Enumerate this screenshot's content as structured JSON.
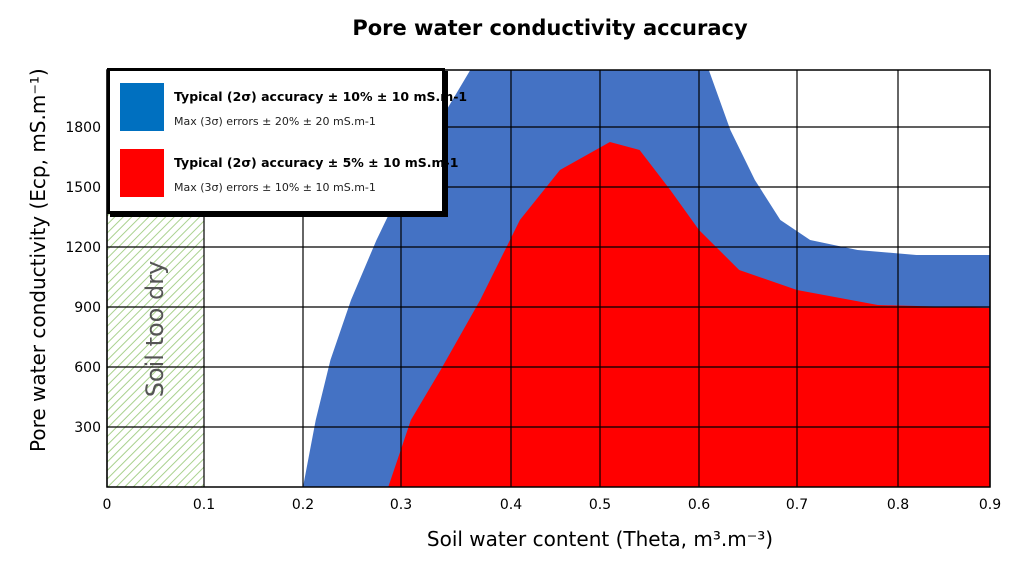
{
  "chart_data": {
    "type": "area",
    "title": "Pore water conductivity accuracy",
    "xlabel": "Soil water content (Theta, m³.m⁻³)",
    "ylabel": "Pore water conductivity (Ecp, mS.m⁻¹)",
    "xlim": [
      0,
      0.9
    ],
    "ylim": [
      0,
      2085
    ],
    "x_ticks": [
      "0",
      "0.1",
      "0.2",
      "0.3",
      "0.4",
      "0.5",
      "0.6",
      "0.7",
      "0.8",
      "0.9"
    ],
    "y_ticks": [
      "300",
      "600",
      "900",
      "1200",
      "1500",
      "1800"
    ],
    "grid": true,
    "legend_position": "top-left",
    "annotation": "Soil too dry",
    "annotation_range_x": [
      0,
      0.1
    ],
    "series": [
      {
        "name": "Typical (2σ) accuracy ± 10% ± 10 mS.m-1",
        "sub": "Max (3σ) errors ± 20% ± 20 mS.m-1",
        "color": "#4472c4",
        "left_boundary": [
          [
            0.2,
            0
          ],
          [
            0.213,
            335
          ],
          [
            0.228,
            635
          ],
          [
            0.249,
            935
          ],
          [
            0.275,
            1235
          ],
          [
            0.304,
            1535
          ],
          [
            0.336,
            1835
          ],
          [
            0.363,
            2085
          ]
        ],
        "upper_boundary": [
          [
            0.61,
            2085
          ],
          [
            0.632,
            1785
          ],
          [
            0.657,
            1535
          ],
          [
            0.683,
            1335
          ],
          [
            0.713,
            1235
          ],
          [
            0.76,
            1185
          ],
          [
            0.82,
            1160
          ],
          [
            0.9,
            1160
          ]
        ]
      },
      {
        "name": "Typical (2σ) accuracy ± 5% ± 10 mS.m-1",
        "sub": "Max (3σ) errors ± 10% ± 10 mS.m-1",
        "color": "#ff0000",
        "boundary": [
          [
            0.287,
            0
          ],
          [
            0.309,
            335
          ],
          [
            0.336,
            585
          ],
          [
            0.372,
            935
          ],
          [
            0.41,
            1335
          ],
          [
            0.455,
            1585
          ],
          [
            0.51,
            1725
          ],
          [
            0.54,
            1685
          ],
          [
            0.571,
            1485
          ],
          [
            0.6,
            1285
          ],
          [
            0.641,
            1085
          ],
          [
            0.7,
            985
          ],
          [
            0.78,
            910
          ],
          [
            0.9,
            895
          ]
        ]
      }
    ]
  }
}
